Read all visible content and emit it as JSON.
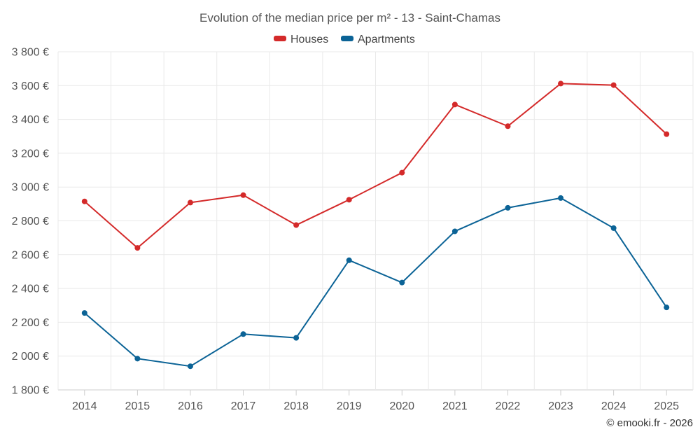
{
  "chart_data": {
    "type": "line",
    "title": "Evolution of the median price per m² - 13 - Saint-Chamas",
    "xlabel": "",
    "ylabel": "",
    "x": [
      "2014",
      "2015",
      "2016",
      "2017",
      "2018",
      "2019",
      "2020",
      "2021",
      "2022",
      "2023",
      "2024",
      "2025"
    ],
    "ylim": [
      1800,
      3800
    ],
    "yticks": [
      1800,
      2000,
      2200,
      2400,
      2600,
      2800,
      3000,
      3200,
      3400,
      3600,
      3800
    ],
    "ytick_labels": [
      "1 800 €",
      "2 000 €",
      "2 200 €",
      "2 400 €",
      "2 600 €",
      "2 800 €",
      "3 000 €",
      "3 200 €",
      "3 400 €",
      "3 600 €",
      "3 800 €"
    ],
    "grid": true,
    "legend_position": "top-center",
    "series": [
      {
        "name": "Houses",
        "color": "#d42a2a",
        "values": [
          2915,
          2640,
          2908,
          2952,
          2775,
          2925,
          3085,
          3488,
          3360,
          3612,
          3603,
          3313
        ]
      },
      {
        "name": "Apartments",
        "color": "#0b6396",
        "values": [
          2255,
          1985,
          1940,
          2130,
          2108,
          2567,
          2435,
          2738,
          2877,
          2935,
          2757,
          2288
        ]
      }
    ]
  },
  "credit": "© emooki.fr - 2026"
}
